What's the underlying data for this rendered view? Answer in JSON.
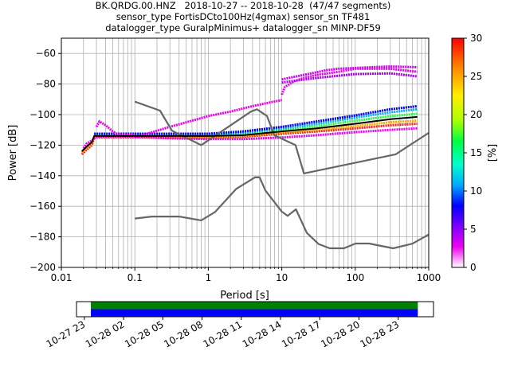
{
  "title": {
    "line1": "BK.QRDG.00.HNZ   2018-10-27 -- 2018-10-28  (47/47 segments)",
    "line2": "sensor_type FortisDCto100Hz(4gmax) sensor_sn TF481",
    "line3": "datalogger_type GuralpMinimus+ datalogger_sn MINP-DF59"
  },
  "chart_data": [
    {
      "type": "heatmap",
      "xlabel": "Period [s]",
      "ylabel": "Power [dB]",
      "xscale": "log",
      "xlim": [
        0.01,
        1000
      ],
      "ylim": [
        -200,
        -50
      ],
      "xticks": [
        {
          "v": 0.01,
          "label": "0.01"
        },
        {
          "v": 0.1,
          "label": "0.1"
        },
        {
          "v": 1,
          "label": "1"
        },
        {
          "v": 10,
          "label": "10"
        },
        {
          "v": 100,
          "label": "100"
        },
        {
          "v": 1000,
          "label": "1000"
        }
      ],
      "yticks": [
        {
          "v": -60,
          "label": "−60"
        },
        {
          "v": -80,
          "label": "−80"
        },
        {
          "v": -100,
          "label": "−100"
        },
        {
          "v": -120,
          "label": "−120"
        },
        {
          "v": -140,
          "label": "−140"
        },
        {
          "v": -160,
          "label": "−160"
        },
        {
          "v": -180,
          "label": "−180"
        },
        {
          "v": -200,
          "label": "−200"
        }
      ],
      "grid": true,
      "colorbar": {
        "label": "[%]",
        "range": [
          0,
          30
        ],
        "ticks": [
          {
            "v": 0,
            "label": "0"
          },
          {
            "v": 5,
            "label": "5"
          },
          {
            "v": 10,
            "label": "10"
          },
          {
            "v": 15,
            "label": "15"
          },
          {
            "v": 20,
            "label": "20"
          },
          {
            "v": 25,
            "label": "25"
          },
          {
            "v": 30,
            "label": "30"
          }
        ],
        "colors": [
          "#ffffff",
          "#ee00ee",
          "#7a00ff",
          "#0000ff",
          "#00aaff",
          "#00ffcc",
          "#00ff44",
          "#aaff00",
          "#ffee00",
          "#ff8800",
          "#ff0000"
        ]
      },
      "noise_models": {
        "color": "#666666",
        "high": {
          "x": [
            0.1,
            0.22,
            0.32,
            0.8,
            3.8,
            4.6,
            6.3,
            7.9,
            15.4,
            20,
            354.8,
            1000
          ],
          "y": [
            -91.5,
            -97.4,
            -110.5,
            -120,
            -98,
            -96.5,
            -101,
            -113.5,
            -120,
            -138.5,
            -126,
            -112
          ]
        },
        "low": {
          "x": [
            0.1,
            0.17,
            0.4,
            0.8,
            1.24,
            2.4,
            4.3,
            5,
            6,
            10,
            12,
            15.6,
            21.9,
            31.6,
            45,
            70,
            101,
            154,
            328,
            600,
            1000
          ],
          "y": [
            -168,
            -166.7,
            -166.7,
            -169.2,
            -163.7,
            -148.6,
            -141.1,
            -141.1,
            -149.7,
            -163.5,
            -166.3,
            -162,
            -177.4,
            -184.7,
            -187.5,
            -187.5,
            -184.4,
            -184.4,
            -187.5,
            -184.5,
            -178.5
          ]
        },
        "mode": {
          "x": [
            0.019,
            0.022,
            0.026,
            0.028,
            0.04,
            0.1,
            0.3,
            1,
            3,
            10,
            30,
            100,
            300,
            700
          ],
          "y": [
            -124,
            -121,
            -118,
            -114,
            -114,
            -114,
            -114,
            -114,
            -113.5,
            -111,
            -109,
            -106,
            -103,
            -101.5
          ],
          "color": "#000000"
        }
      },
      "psd_density": [
        {
          "x": [
            0.019,
            0.022,
            0.026,
            0.028,
            0.04,
            0.1,
            0.3,
            1,
            3,
            10,
            30,
            100,
            300,
            700
          ],
          "y": [
            -126,
            -123,
            -120,
            -115,
            -115,
            -115,
            -115,
            -115,
            -114.5,
            -112.5,
            -111,
            -109,
            -107,
            -106
          ],
          "color": "#ff2020"
        },
        {
          "x": [
            0.019,
            0.022,
            0.026,
            0.028,
            0.04,
            0.1,
            0.3,
            1,
            3,
            10,
            30,
            100,
            300,
            700
          ],
          "y": [
            -125,
            -122,
            -119,
            -114.5,
            -114.5,
            -114.5,
            -114.5,
            -114.5,
            -114,
            -112,
            -110,
            -107.5,
            -105,
            -104
          ],
          "color": "#ffaa00"
        },
        {
          "x": [
            0.028,
            0.04,
            0.1,
            0.3,
            1,
            3,
            10,
            30,
            100,
            300,
            700
          ],
          "y": [
            -113.5,
            -113.5,
            -113.5,
            -113.5,
            -113.5,
            -112.5,
            -110,
            -107.5,
            -104,
            -101,
            -99.5
          ],
          "color": "#22ff44"
        },
        {
          "x": [
            0.028,
            0.04,
            0.1,
            0.3,
            1,
            3,
            10,
            30,
            100,
            300,
            700
          ],
          "y": [
            -113,
            -113,
            -113,
            -113,
            -113,
            -112,
            -109,
            -106,
            -102,
            -98.5,
            -96.5
          ],
          "color": "#00aaff"
        },
        {
          "x": [
            0.028,
            0.04,
            0.1,
            0.3,
            1,
            3,
            10,
            30,
            100,
            300,
            700
          ],
          "y": [
            -112.5,
            -112.5,
            -112.5,
            -112.5,
            -112.5,
            -111,
            -108,
            -104.5,
            -100.5,
            -96.5,
            -94.5
          ],
          "color": "#0000ff"
        },
        {
          "x": [
            0.02,
            0.022,
            0.026,
            0.03,
            0.04,
            0.1,
            0.3,
            1,
            3,
            10,
            30,
            100,
            300,
            700
          ],
          "y": [
            -122,
            -119,
            -117,
            -114.5,
            -114.5,
            -114.5,
            -115.5,
            -116,
            -116,
            -115,
            -113.5,
            -111.5,
            -110,
            -109
          ],
          "color": "#ee00ee"
        },
        {
          "x": [
            0.03,
            0.033,
            0.04,
            0.05,
            0.06,
            0.1
          ],
          "y": [
            -108,
            -104.5,
            -107,
            -111,
            -113,
            -113
          ],
          "color": "#ee00ee"
        },
        {
          "x": [
            0.1,
            0.3,
            0.6,
            1,
            2,
            4,
            7,
            10
          ],
          "y": [
            -115,
            -108,
            -104,
            -101,
            -98,
            -94.5,
            -92,
            -90.5
          ],
          "color": "#ee00ee"
        },
        {
          "x": [
            10,
            11,
            15,
            20,
            30,
            60,
            100,
            300,
            700
          ],
          "y": [
            -87,
            -82,
            -78,
            -76,
            -74,
            -72,
            -70,
            -70,
            -72
          ],
          "color": "#ee00ee"
        },
        {
          "x": [
            10,
            20,
            40,
            60,
            100,
            300,
            700
          ],
          "y": [
            -77,
            -74,
            -71,
            -70,
            -69.5,
            -68.5,
            -69
          ],
          "color": "#cc00ee"
        },
        {
          "x": [
            10,
            30,
            100,
            300,
            700
          ],
          "y": [
            -79,
            -76,
            -73.5,
            -73,
            -75
          ],
          "color": "#aa00ff"
        }
      ]
    },
    {
      "type": "timeline",
      "xticks": [
        "10-27 23",
        "10-28 02",
        "10-28 05",
        "10-28 08",
        "10-28 11",
        "10-28 14",
        "10-28 17",
        "10-28 20",
        "10-28 23"
      ],
      "xrange_hours": [
        -0.6,
        26.7
      ],
      "tick_hours": [
        0,
        3,
        6,
        9,
        12,
        15,
        18,
        21,
        24
      ],
      "coverage": {
        "start_hour": 0.5,
        "end_hour": 25.5
      },
      "colors": {
        "upper": "#008000",
        "lower": "#0000ff"
      }
    }
  ]
}
